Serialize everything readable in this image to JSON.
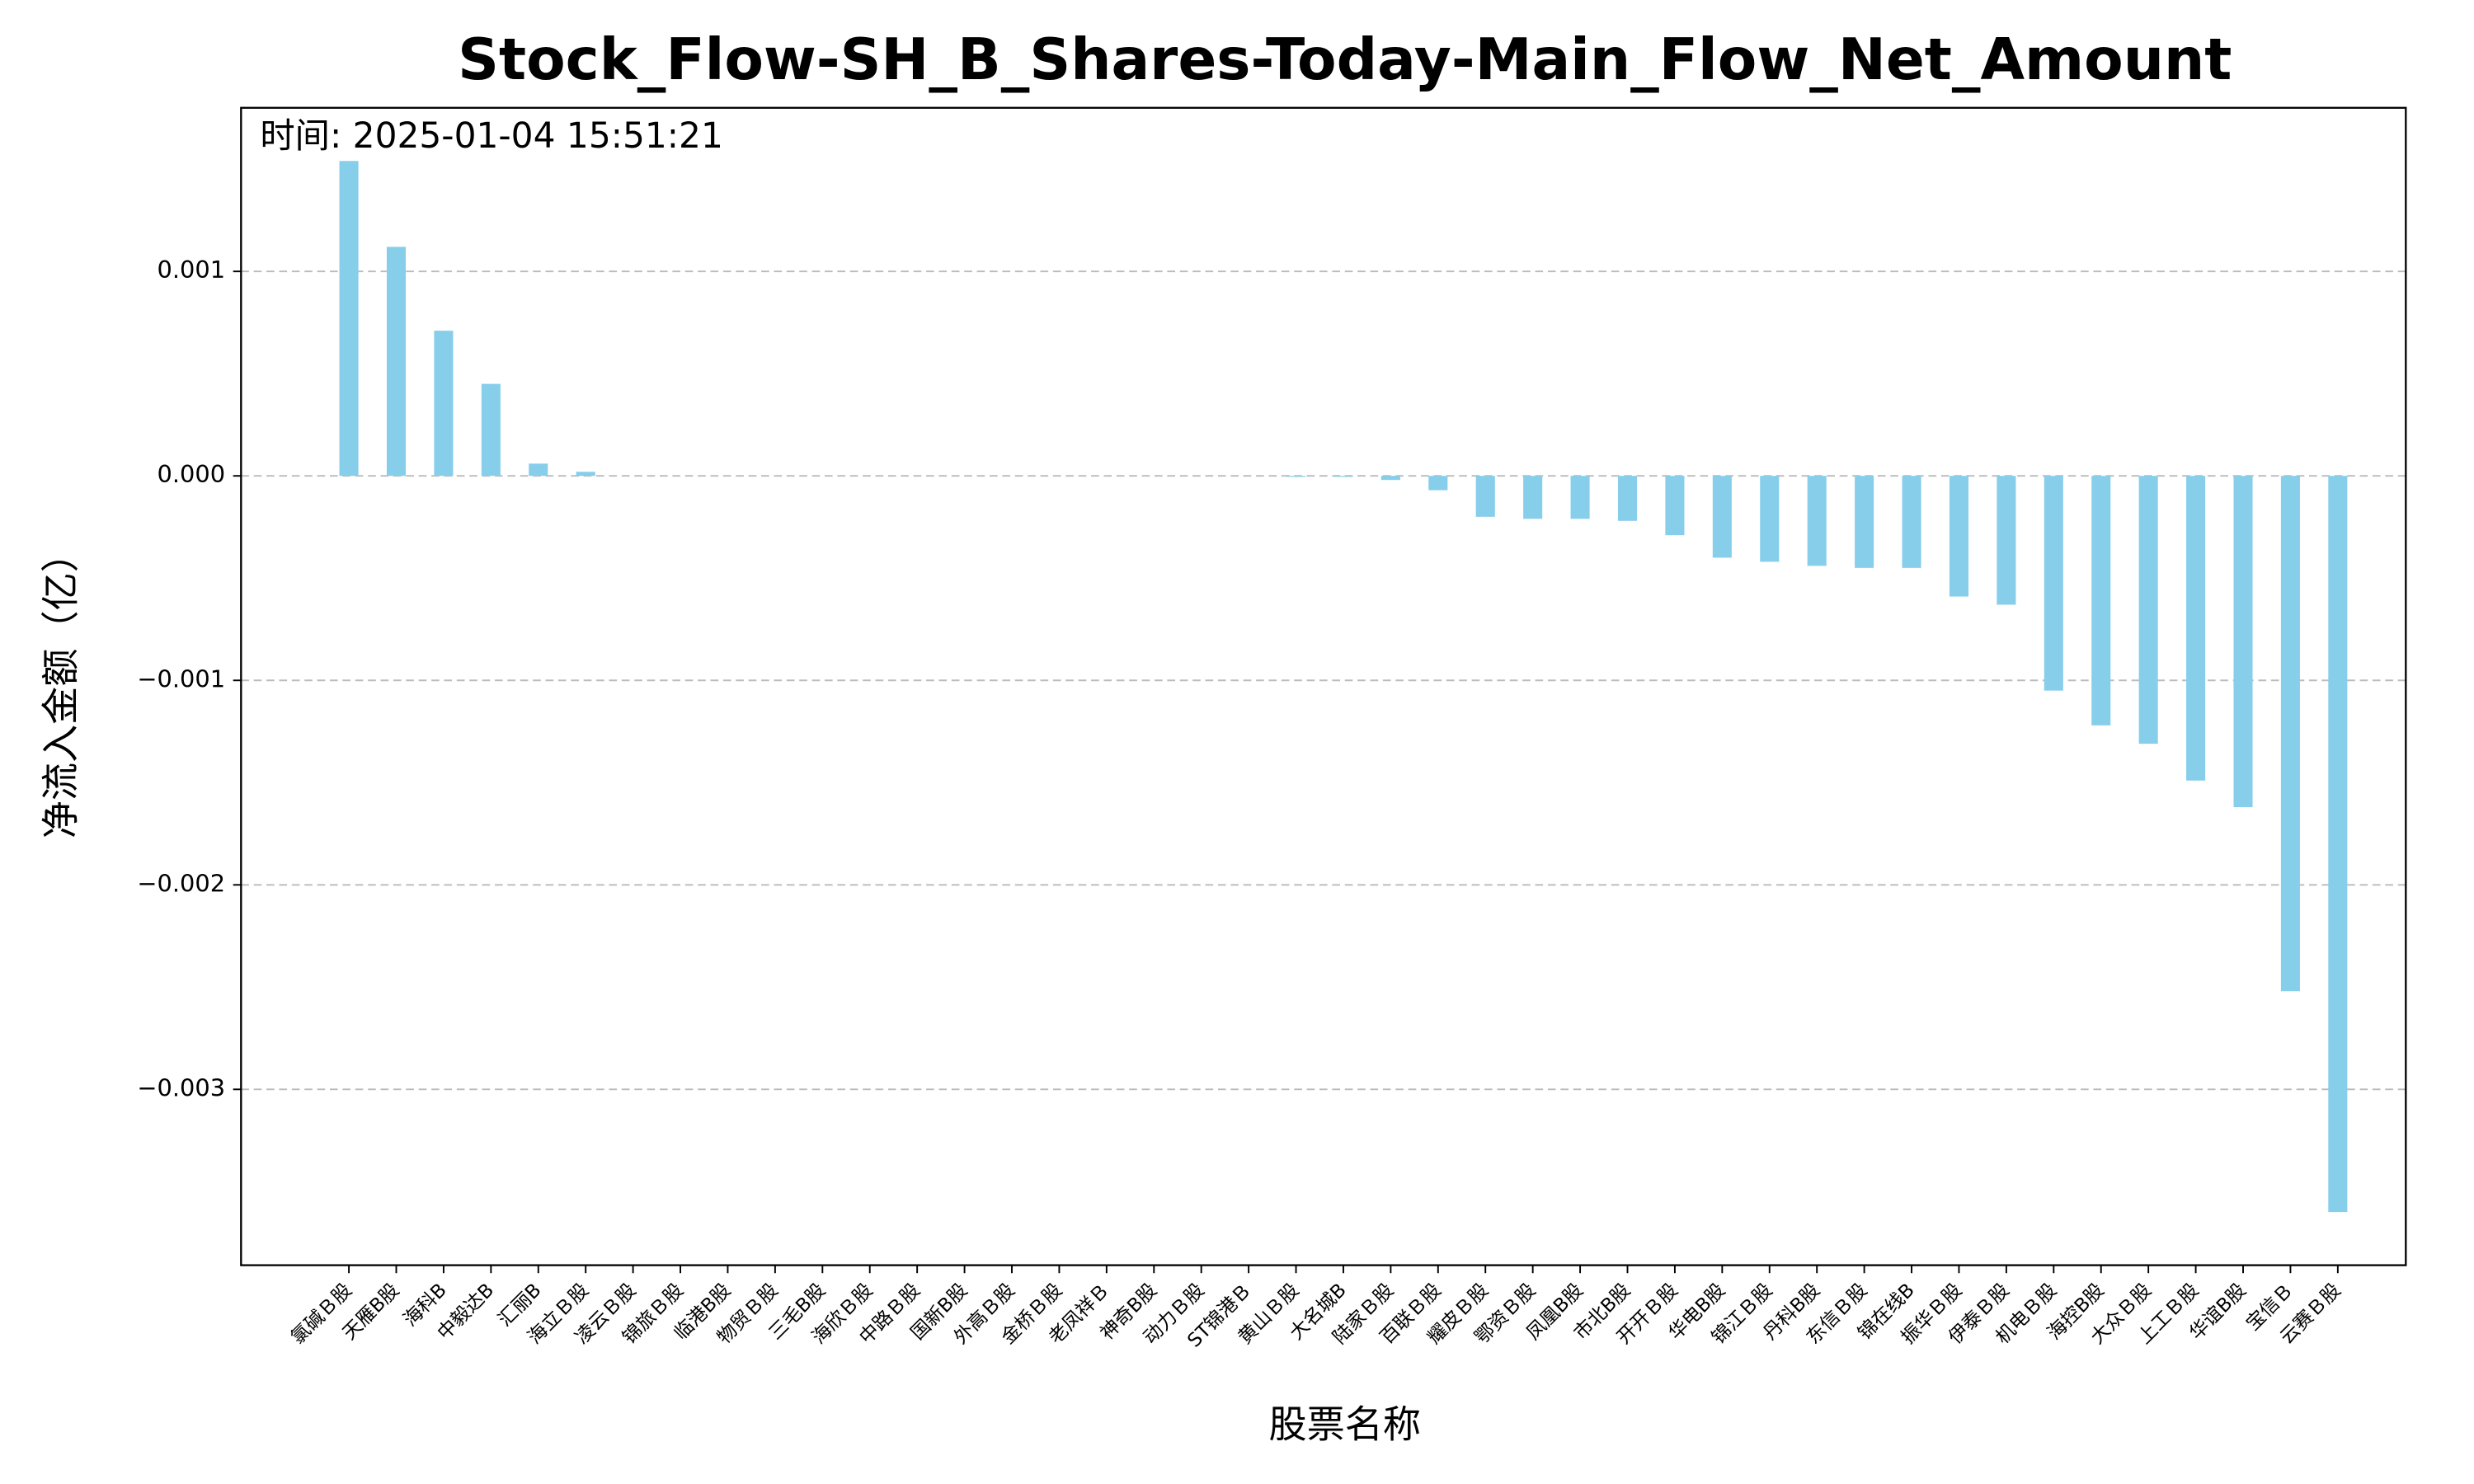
{
  "chart_data": {
    "type": "bar",
    "title": "Stock_Flow-SH_B_Shares-Today-Main_Flow_Net_Amount",
    "annotation": "时间: 2025-01-04 15:51:21",
    "x_label": "股票名称",
    "y_label": "净流入金额（亿）",
    "color": "#87ceeb",
    "title_color": "#1f4fb5",
    "grid": true,
    "categories": [
      "氯碱Ｂ股",
      "天雁B股",
      "海科B",
      "中毅达B",
      "汇丽B",
      "海立Ｂ股",
      "凌云Ｂ股",
      "锦旅Ｂ股",
      "临港B股",
      "物贸Ｂ股",
      "三毛B股",
      "海欣Ｂ股",
      "中路Ｂ股",
      "国新B股",
      "外高Ｂ股",
      "金桥Ｂ股",
      "老凤祥Ｂ",
      "神奇B股",
      "动力Ｂ股",
      "ST锦港Ｂ",
      "黄山Ｂ股",
      "大名城B",
      "陆家Ｂ股",
      "百联Ｂ股",
      "耀皮Ｂ股",
      "鄂资Ｂ股",
      "凤凰B股",
      "市北B股",
      "开开Ｂ股",
      "华电B股",
      "锦江Ｂ股",
      "丹科B股",
      "东信Ｂ股",
      "锦在线B",
      "振华Ｂ股",
      "伊泰Ｂ股",
      "机电Ｂ股",
      "海控B股",
      "大众Ｂ股",
      "上工Ｂ股",
      "华谊B股",
      "宝信Ｂ",
      "云赛Ｂ股"
    ],
    "values": [
      0.00154,
      0.00112,
      0.00071,
      0.00045,
      6e-05,
      2e-05,
      0,
      0,
      0,
      0,
      0,
      0,
      0,
      0,
      0,
      0,
      0,
      0,
      0,
      0,
      -5e-06,
      -5e-06,
      -2e-05,
      -7e-05,
      -0.0002,
      -0.00021,
      -0.00021,
      -0.00022,
      -0.00029,
      -0.0004,
      -0.00042,
      -0.00044,
      -0.00045,
      -0.00045,
      -0.00059,
      -0.00063,
      -0.00105,
      -0.00122,
      -0.00131,
      -0.00149,
      -0.00162,
      -0.00252,
      -0.0036
    ],
    "ylim": [
      -0.00386,
      0.0018
    ],
    "yticks": [
      {
        "value": -0.003,
        "label": "−0.003"
      },
      {
        "value": -0.002,
        "label": "−0.002"
      },
      {
        "value": -0.001,
        "label": "−0.001"
      },
      {
        "value": 0,
        "label": "0.000"
      },
      {
        "value": 0.001,
        "label": "0.001"
      }
    ]
  }
}
